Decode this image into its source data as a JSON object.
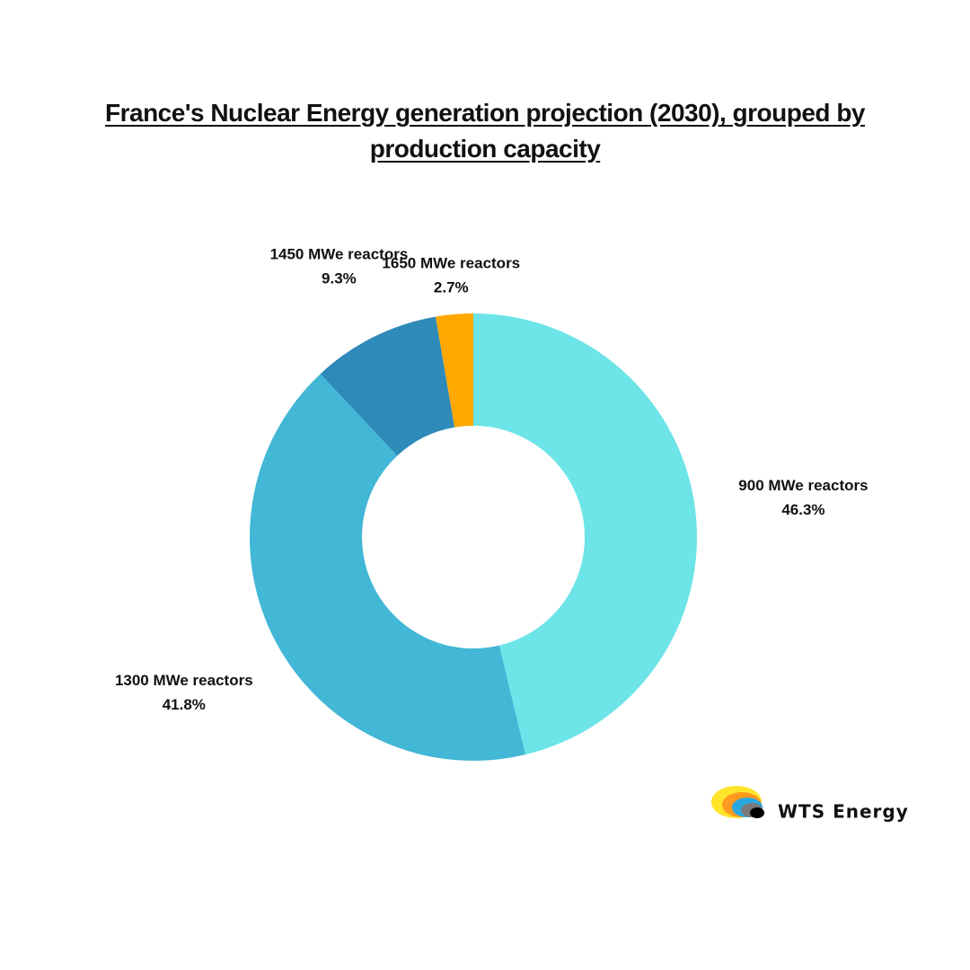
{
  "chart_data": {
    "type": "donut",
    "title": "France's Nuclear Energy generation projection (2030), grouped by production capacity",
    "categories": [
      "900 MWe reactors",
      "1300 MWe reactors",
      "1450 MWe reactors",
      "1650 MWe reactors"
    ],
    "values": [
      46.3,
      41.8,
      9.3,
      2.7
    ],
    "value_labels": [
      "46.3%",
      "41.8%",
      "9.3%",
      "2.7%"
    ],
    "colors": [
      "#6ce4e8",
      "#43b7d6",
      "#2e8ab9",
      "#ffa800"
    ]
  },
  "logo": {
    "text": "WTS Energy"
  }
}
